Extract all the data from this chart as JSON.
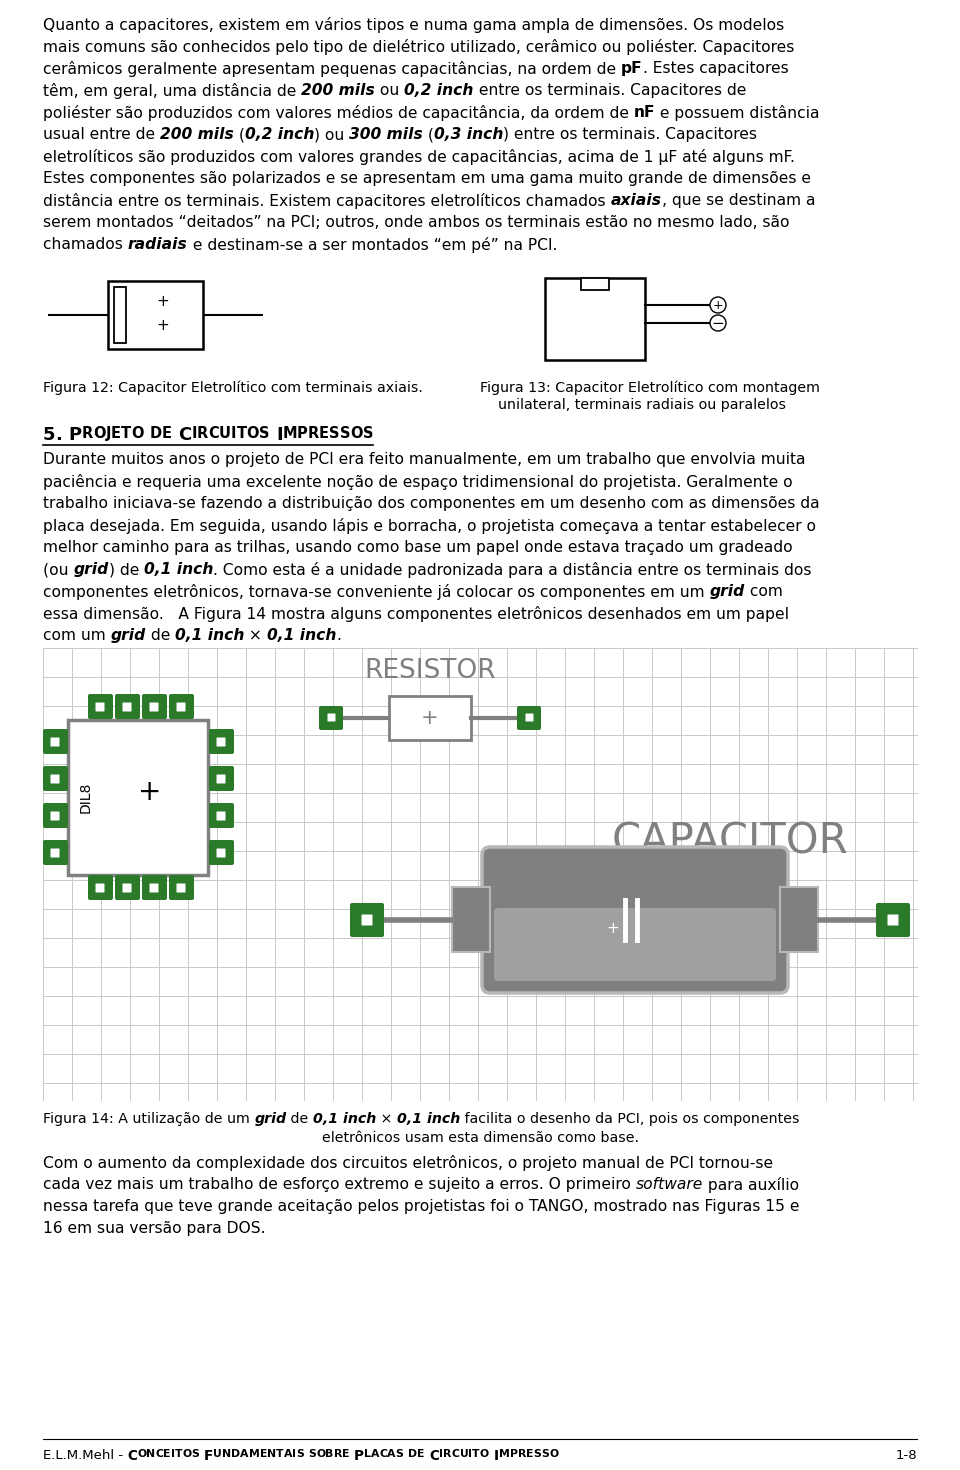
{
  "bg_color": "#ffffff",
  "green_color": "#2a7a2a",
  "gray_color": "#808080",
  "light_gray": "#b8b8b8",
  "grid_color": "#c8c8c8",
  "p1_lines": [
    [
      {
        "t": "Quanto a capacitores, existem em vários tipos e numa gama ampla de dimensões. Os modelos",
        "w": "normal",
        "s": "normal"
      }
    ],
    [
      {
        "t": "mais comuns são conhecidos pelo tipo de dielétrico utilizado, cerâmico ou poliéster. Capacitores",
        "w": "normal",
        "s": "normal"
      }
    ],
    [
      {
        "t": "cerâmicos geralmente apresentam pequenas capacitâncias, na ordem de ",
        "w": "normal",
        "s": "normal"
      },
      {
        "t": "pF",
        "w": "bold",
        "s": "normal"
      },
      {
        "t": ". Estes capacitores",
        "w": "normal",
        "s": "normal"
      }
    ],
    [
      {
        "t": "têm, em geral, uma distância de ",
        "w": "normal",
        "s": "normal"
      },
      {
        "t": "200 mils",
        "w": "bold",
        "s": "italic"
      },
      {
        "t": " ou ",
        "w": "normal",
        "s": "normal"
      },
      {
        "t": "0,2 inch",
        "w": "bold",
        "s": "italic"
      },
      {
        "t": " entre os terminais. Capacitores de",
        "w": "normal",
        "s": "normal"
      }
    ],
    [
      {
        "t": "poliéster são produzidos com valores médios de capacitância, da ordem de ",
        "w": "normal",
        "s": "normal"
      },
      {
        "t": "nF",
        "w": "bold",
        "s": "normal"
      },
      {
        "t": " e possuem distância",
        "w": "normal",
        "s": "normal"
      }
    ],
    [
      {
        "t": "usual entre de ",
        "w": "normal",
        "s": "normal"
      },
      {
        "t": "200 mils",
        "w": "bold",
        "s": "italic"
      },
      {
        "t": " (",
        "w": "normal",
        "s": "normal"
      },
      {
        "t": "0,2 inch",
        "w": "bold",
        "s": "italic"
      },
      {
        "t": ") ou ",
        "w": "normal",
        "s": "normal"
      },
      {
        "t": "300 mils",
        "w": "bold",
        "s": "italic"
      },
      {
        "t": " (",
        "w": "normal",
        "s": "normal"
      },
      {
        "t": "0,3 inch",
        "w": "bold",
        "s": "italic"
      },
      {
        "t": ") entre os terminais. Capacitores",
        "w": "normal",
        "s": "normal"
      }
    ],
    [
      {
        "t": "eletrolíticos são produzidos com valores grandes de capacitâncias, acima de 1 μF até alguns mF.",
        "w": "normal",
        "s": "normal"
      }
    ],
    [
      {
        "t": "Estes componentes são polarizados e se apresentam em uma gama muito grande de dimensões e",
        "w": "normal",
        "s": "normal"
      }
    ],
    [
      {
        "t": "distância entre os terminais. Existem capacitores eletrolíticos chamados ",
        "w": "normal",
        "s": "normal"
      },
      {
        "t": "axiais",
        "w": "bold",
        "s": "italic"
      },
      {
        "t": ", que se destinam a",
        "w": "normal",
        "s": "normal"
      }
    ],
    [
      {
        "t": "serem montados “deitados” na PCI; outros, onde ambos os terminais estão no mesmo lado, são",
        "w": "normal",
        "s": "normal"
      }
    ],
    [
      {
        "t": "chamados ",
        "w": "normal",
        "s": "normal"
      },
      {
        "t": "radiais",
        "w": "bold",
        "s": "italic"
      },
      {
        "t": " e destinam-se a ser montados “em pé” na PCI.",
        "w": "normal",
        "s": "normal"
      }
    ]
  ],
  "p2_lines": [
    [
      {
        "t": "Durante muitos anos o projeto de PCI era feito manualmente, em um trabalho que envolvia muita",
        "w": "normal",
        "s": "normal"
      }
    ],
    [
      {
        "t": "paciência e requeria uma excelente noção de espaço tridimensional do projetista. Geralmente o",
        "w": "normal",
        "s": "normal"
      }
    ],
    [
      {
        "t": "trabalho iniciava-se fazendo a distribuição dos componentes em um desenho com as dimensões da",
        "w": "normal",
        "s": "normal"
      }
    ],
    [
      {
        "t": "placa desejada. Em seguida, usando lápis e borracha, o projetista começava a tentar estabelecer o",
        "w": "normal",
        "s": "normal"
      }
    ],
    [
      {
        "t": "melhor caminho para as trilhas, usando como base um papel onde estava traçado um gradeado",
        "w": "normal",
        "s": "normal"
      }
    ],
    [
      {
        "t": "(ou ",
        "w": "normal",
        "s": "normal"
      },
      {
        "t": "grid",
        "w": "bold",
        "s": "italic"
      },
      {
        "t": ") de ",
        "w": "normal",
        "s": "normal"
      },
      {
        "t": "0,1 inch",
        "w": "bold",
        "s": "italic"
      },
      {
        "t": ". Como esta é a unidade padronizada para a distância entre os terminais dos",
        "w": "normal",
        "s": "normal"
      }
    ],
    [
      {
        "t": "componentes eletrônicos, tornava-se conveniente já colocar os componentes em um ",
        "w": "normal",
        "s": "normal"
      },
      {
        "t": "grid",
        "w": "bold",
        "s": "italic"
      },
      {
        "t": " com",
        "w": "normal",
        "s": "normal"
      }
    ],
    [
      {
        "t": "essa dimensão.   A Figura 14 mostra alguns componentes eletrônicos desenhados em um papel",
        "w": "normal",
        "s": "normal"
      }
    ],
    [
      {
        "t": "com um ",
        "w": "normal",
        "s": "normal"
      },
      {
        "t": "grid",
        "w": "bold",
        "s": "italic"
      },
      {
        "t": " de ",
        "w": "normal",
        "s": "normal"
      },
      {
        "t": "0,1 inch",
        "w": "bold",
        "s": "italic"
      },
      {
        "t": " × ",
        "w": "normal",
        "s": "normal"
      },
      {
        "t": "0,1 inch",
        "w": "bold",
        "s": "italic"
      },
      {
        "t": ".",
        "w": "normal",
        "s": "normal"
      }
    ]
  ],
  "p3_lines": [
    [
      {
        "t": "Com o aumento da complexidade dos circuitos eletrônicos, o projeto manual de PCI tornou-se",
        "w": "normal",
        "s": "normal"
      }
    ],
    [
      {
        "t": "cada vez mais um trabalho de esforço extremo e sujeito a erros. O primeiro ",
        "w": "normal",
        "s": "normal"
      },
      {
        "t": "software",
        "w": "normal",
        "s": "italic"
      },
      {
        "t": " para auxílio",
        "w": "normal",
        "s": "normal"
      }
    ],
    [
      {
        "t": "nessa tarefa que teve grande aceitação pelos projetistas foi o TANGO, mostrado nas Figuras 15 e",
        "w": "normal",
        "s": "normal"
      }
    ],
    [
      {
        "t": "16 em sua versão para DOS.",
        "w": "normal",
        "s": "normal"
      }
    ]
  ],
  "fig12_caption": "Figura 12: Capacitor Eletrolítico com terminais axiais.",
  "fig13_caption_line1": "Figura 13: Capacitor Eletrolítico com montagem",
  "fig13_caption_line2": "unilateral, terminais radiais ou paralelos",
  "sec5_title_segments": [
    {
      "t": "5. ",
      "w": "bold",
      "s": "normal",
      "fs_delta": 0
    },
    {
      "t": "P",
      "w": "bold",
      "s": "normal",
      "fs_delta": 0
    },
    {
      "t": "ROJETO DE ",
      "w": "bold",
      "s": "normal",
      "fs_delta": -2
    },
    {
      "t": "C",
      "w": "bold",
      "s": "normal",
      "fs_delta": 0
    },
    {
      "t": "IRCUITOS ",
      "w": "bold",
      "s": "normal",
      "fs_delta": -2
    },
    {
      "t": "I",
      "w": "bold",
      "s": "normal",
      "fs_delta": 0
    },
    {
      "t": "MPRESSOS",
      "w": "bold",
      "s": "normal",
      "fs_delta": -2
    }
  ],
  "fig14_cap_seg": [
    {
      "t": "Figura 14: A utilização de um ",
      "w": "normal",
      "s": "normal"
    },
    {
      "t": "grid",
      "w": "bold",
      "s": "italic"
    },
    {
      "t": " de ",
      "w": "normal",
      "s": "normal"
    },
    {
      "t": "0,1 inch",
      "w": "bold",
      "s": "italic"
    },
    {
      "t": " × ",
      "w": "normal",
      "s": "normal"
    },
    {
      "t": "0,1 inch",
      "w": "bold",
      "s": "italic"
    },
    {
      "t": " facilita o desenho da PCI, pois os componentes",
      "w": "normal",
      "s": "normal"
    }
  ],
  "fig14_cap_line2": "eletrônicos usam esta dimensão como base.",
  "footer_normal": "E.L.M.Mehl - ",
  "footer_bold": "Conceitos Fundamentais sobre Placas de Circuito Impresso",
  "footer_sc_bold": "C",
  "footer_page": "1-8"
}
